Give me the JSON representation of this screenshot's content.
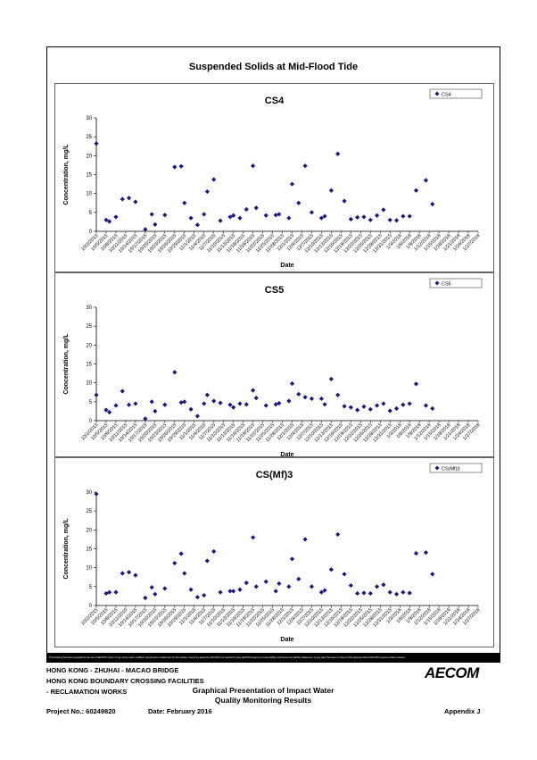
{
  "main_title": "Suspended Solids at Mid-Flood Tide",
  "x_dates": [
    "10/2/2015",
    "10/5/2015",
    "10/6/2015",
    "10/8/2015",
    "10/10/2015",
    "10/12/2015",
    "10/14/2015",
    "10/17/2015",
    "10/19/2015",
    "10/20/2015",
    "10/23/2015",
    "10/26/2015",
    "10/28/2015",
    "10/29/2015",
    "10/31/2015",
    "11/2/2015",
    "11/4/2015",
    "11/5/2015",
    "11/7/2015",
    "11/9/2015",
    "11/12/2015",
    "11/13/2015",
    "11/15/2015",
    "11/17/2015",
    "11/19/2015",
    "11/20/2015",
    "11/23/2015",
    "11/26/2015",
    "11/27/2015",
    "11/30/2015",
    "12/1/2015",
    "12/3/2015",
    "12/5/2015",
    "12/7/2015",
    "12/10/2015",
    "12/11/2015",
    "12/13/2015",
    "12/15/2015",
    "12/17/2015",
    "12/19/2015",
    "12/21/2015",
    "12/23/2015",
    "12/25/2015",
    "12/27/2015",
    "12/29/2015",
    "12/31/2015",
    "1/2/2016",
    "1/4/2016",
    "1/6/2016",
    "1/8/2016",
    "1/11/2016",
    "1/13/2016",
    "1/15/2016",
    "1/17/2016",
    "1/19/2016",
    "1/21/2016",
    "1/23/2016",
    "1/25/2016",
    "1/27/2016"
  ],
  "x_tick_labels": [
    "10/2/2015",
    "10/5/2015",
    "10/8/2015",
    "10/11/2015",
    "10/14/2015",
    "10/17/2015",
    "10/20/2015",
    "10/23/2015",
    "10/26/2015",
    "10/29/2015",
    "11/1/2015",
    "11/4/2015",
    "11/7/2015",
    "11/10/2015",
    "11/13/2015",
    "11/16/2015",
    "11/19/2015",
    "11/22/2015",
    "11/25/2015",
    "11/28/2015",
    "12/1/2015",
    "12/4/2015",
    "12/7/2015",
    "12/10/2015",
    "12/13/2015",
    "12/16/2015",
    "12/19/2015",
    "12/22/2015",
    "12/25/2015",
    "12/28/2015",
    "12/31/2015",
    "1/3/2016",
    "1/6/2016",
    "1/9/2016",
    "1/12/2016",
    "1/15/2016",
    "1/18/2016",
    "1/21/2016",
    "1/24/2016",
    "1/27/2016"
  ],
  "chart_data": [
    {
      "type": "scatter",
      "title": "CS4",
      "xlabel": "Date",
      "ylabel": "Concentration, mg/L",
      "ylim": [
        0,
        30
      ],
      "yticks": [
        0,
        5,
        10,
        15,
        20,
        25,
        30
      ],
      "grid": false,
      "legend_position": "top-right",
      "series": [
        {
          "name": "CS4",
          "color": "#1a1a7a",
          "values": [
            23.2,
            3.0,
            2.6,
            3.8,
            8.5,
            8.8,
            7.8,
            0.5,
            4.5,
            1.8,
            4.3,
            17.0,
            17.2,
            7.5,
            3.5,
            1.7,
            4.5,
            10.5,
            13.7,
            2.8,
            3.8,
            4.2,
            3.5,
            5.8,
            17.3,
            6.2,
            4.2,
            4.3,
            4.5,
            3.5,
            12.5,
            7.5,
            17.3,
            5.0,
            3.5,
            4.0,
            10.8,
            20.5,
            8.0,
            3.2,
            3.7,
            3.8,
            3.0,
            4.2,
            5.7,
            3.0,
            2.9,
            4.0,
            4.0,
            10.8,
            13.5,
            7.2,
            null,
            null,
            null,
            null,
            null,
            null,
            null
          ]
        }
      ]
    },
    {
      "type": "scatter",
      "title": "CS5",
      "xlabel": "Date",
      "ylabel": "Concentration, mg/L",
      "ylim": [
        0,
        30
      ],
      "yticks": [
        0,
        5,
        10,
        15,
        20,
        25,
        30
      ],
      "grid": false,
      "legend_position": "top-right",
      "series": [
        {
          "name": "CS5",
          "color": "#1a1a7a",
          "values": [
            6.8,
            2.8,
            2.2,
            4.0,
            7.8,
            4.2,
            4.5,
            0.5,
            5.0,
            2.5,
            4.2,
            12.8,
            4.8,
            5.0,
            3.0,
            1.2,
            4.5,
            6.8,
            5.2,
            4.7,
            4.2,
            3.5,
            4.5,
            4.3,
            8.0,
            6.0,
            4.0,
            4.3,
            4.6,
            5.2,
            9.8,
            7.0,
            6.2,
            5.8,
            5.8,
            4.3,
            11.0,
            6.8,
            3.8,
            3.5,
            2.8,
            3.7,
            3.0,
            4.0,
            4.5,
            2.6,
            3.2,
            4.2,
            4.5,
            9.7,
            4.0,
            3.2,
            null,
            null,
            null,
            null,
            null,
            null,
            null
          ]
        }
      ]
    },
    {
      "type": "scatter",
      "title": "CS(Mf)3",
      "xlabel": "Date",
      "ylabel": "Concentration, mg/L",
      "ylim": [
        0,
        30
      ],
      "yticks": [
        0,
        5,
        10,
        15,
        20,
        25,
        30
      ],
      "grid": false,
      "legend_position": "top-right",
      "series": [
        {
          "name": "CS(Mf)3",
          "color": "#1a1a7a",
          "values": [
            29.5,
            3.2,
            3.5,
            3.5,
            8.5,
            8.8,
            8.0,
            2.0,
            4.8,
            3.0,
            4.5,
            11.2,
            13.7,
            8.5,
            4.2,
            2.2,
            2.7,
            11.8,
            14.3,
            3.5,
            3.8,
            3.8,
            4.2,
            6.0,
            18.0,
            5.0,
            6.3,
            3.8,
            5.8,
            5.0,
            12.3,
            7.0,
            17.5,
            5.0,
            3.5,
            4.0,
            9.5,
            18.8,
            8.3,
            5.3,
            3.2,
            3.3,
            3.2,
            5.0,
            5.5,
            3.5,
            3.0,
            3.5,
            3.3,
            13.8,
            14.0,
            8.3,
            null,
            null,
            null,
            null,
            null,
            null,
            null
          ]
        }
      ]
    }
  ],
  "disclaimer": "This Drawing has been prepared for the use of AECOM's client. It may not be used, modified, reproduced or relied upon by third parties, except as agreed by AECOM or as required by law. AECOM accepts no responsibility, and denies any liability whatsoever, to any party that uses or relies on this drawing without AECOM's express written consent.",
  "footer": {
    "line1": "HONG KONG - ZHUHAI - MACAO BRIDGE",
    "line2": "HONG KONG BOUNDARY CROSSING FACILITIES",
    "line3": "- RECLAMATION WORKS",
    "graph_title": "Graphical Presentation of Impact Water Quality Monitoring Results",
    "project_no": "Project No.: 60249820",
    "date": "Date: February 2016",
    "appendix": "Appendix J",
    "logo": "AECOM"
  }
}
